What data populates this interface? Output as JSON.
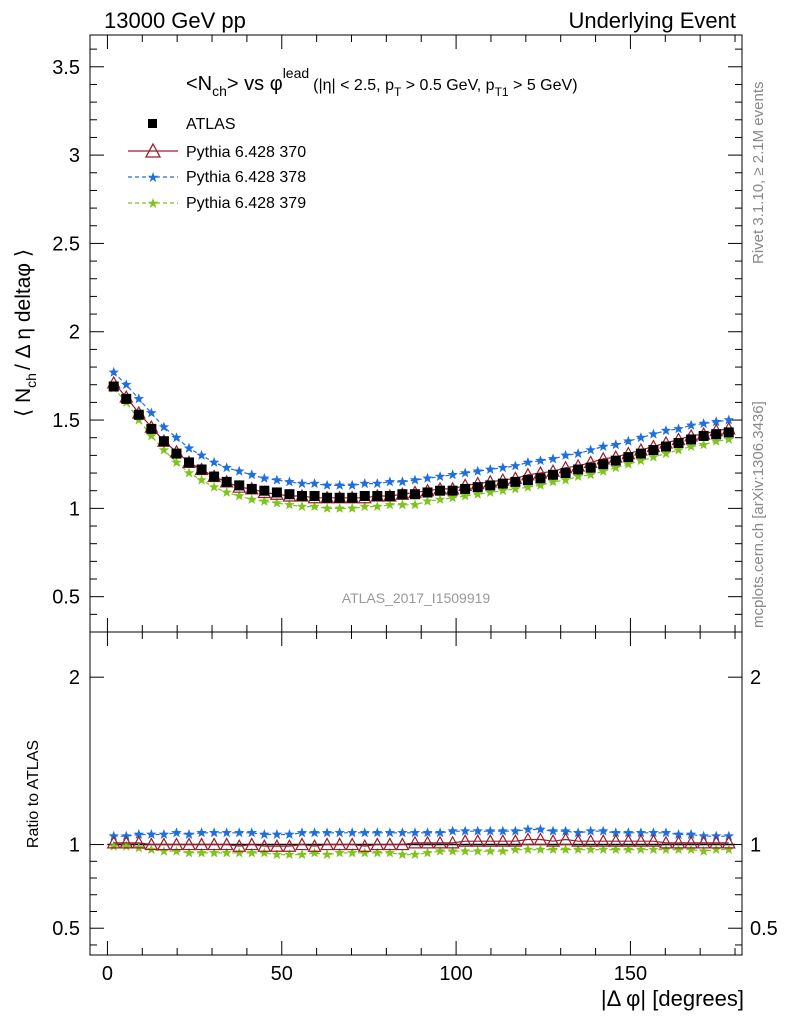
{
  "header": {
    "left": "13000 GeV pp",
    "right": "Underlying Event"
  },
  "side_labels": {
    "rivet": "Rivet 3.1.10, ≥ 2.1M events",
    "mcplots": "mcplots.cern.ch [arXiv:1306.3436]"
  },
  "watermark": "ATLAS_2017_I1509919",
  "chart_data": [
    {
      "type": "scatter",
      "title": "<N_ch> vs φ^lead (|η| < 2.5, p_T > 0.5 GeV, p_T1 > 5 GeV)",
      "title_parts": {
        "main": "<N",
        "main_sub": "ch",
        "main2": "> vs φ",
        "main_sup": "lead",
        "cond1": "(|η| < 2.5, p",
        "cond1_sub": "T",
        "cond2": " > 0.5 GeV, p",
        "cond2_sub": "T1",
        "cond3": " > 5 GeV)"
      },
      "ylabel": "⟨ N_ch / Δ η deltaφ ⟩",
      "ylabel_parts": {
        "a": "⟨ N",
        "sub": "ch",
        "b": "/ Δ η deltaφ ⟩"
      },
      "xlim": [
        -5,
        182
      ],
      "ylim": [
        0.3,
        3.68
      ],
      "yticks": [
        0.5,
        1,
        1.5,
        2,
        2.5,
        3,
        3.5
      ],
      "ytick_labels": [
        "0.5",
        "1",
        "1.5",
        "2",
        "2.5",
        "3",
        "3.5"
      ],
      "legend_position": "top-left",
      "x": [
        1.8,
        5.4,
        9.0,
        12.6,
        16.2,
        19.8,
        23.4,
        27.0,
        30.6,
        34.2,
        37.8,
        41.4,
        45.0,
        48.6,
        52.2,
        55.8,
        59.4,
        63.0,
        66.6,
        70.2,
        73.8,
        77.4,
        81.0,
        84.6,
        88.2,
        91.8,
        95.4,
        99.0,
        102.6,
        106.2,
        109.8,
        113.4,
        117.0,
        120.6,
        124.2,
        127.8,
        131.4,
        135.0,
        138.6,
        142.2,
        145.8,
        149.4,
        153.0,
        156.6,
        160.2,
        163.8,
        167.4,
        171.0,
        174.6,
        178.2
      ],
      "series": [
        {
          "name": "ATLAS",
          "color": "#000000",
          "marker": "square",
          "line": "none",
          "values": [
            1.69,
            1.62,
            1.53,
            1.45,
            1.38,
            1.31,
            1.26,
            1.22,
            1.18,
            1.15,
            1.13,
            1.11,
            1.1,
            1.09,
            1.08,
            1.07,
            1.07,
            1.06,
            1.06,
            1.06,
            1.07,
            1.07,
            1.07,
            1.08,
            1.08,
            1.09,
            1.1,
            1.1,
            1.11,
            1.12,
            1.13,
            1.14,
            1.15,
            1.16,
            1.17,
            1.19,
            1.2,
            1.22,
            1.23,
            1.25,
            1.27,
            1.29,
            1.31,
            1.33,
            1.35,
            1.37,
            1.39,
            1.41,
            1.42,
            1.43
          ]
        },
        {
          "name": "Pythia 6.428 370",
          "color": "#9b1c2e",
          "marker": "triangle",
          "line": "solid",
          "values": [
            1.71,
            1.63,
            1.54,
            1.46,
            1.38,
            1.32,
            1.26,
            1.22,
            1.18,
            1.15,
            1.12,
            1.11,
            1.09,
            1.08,
            1.07,
            1.07,
            1.06,
            1.06,
            1.06,
            1.06,
            1.06,
            1.07,
            1.07,
            1.08,
            1.09,
            1.1,
            1.11,
            1.11,
            1.13,
            1.14,
            1.15,
            1.16,
            1.17,
            1.19,
            1.2,
            1.21,
            1.23,
            1.24,
            1.26,
            1.28,
            1.29,
            1.31,
            1.33,
            1.35,
            1.37,
            1.39,
            1.41,
            1.42,
            1.44,
            1.45
          ]
        },
        {
          "name": "Pythia 6.428 378",
          "color": "#1f6fe0",
          "marker": "star",
          "line": "dashed",
          "values": [
            1.77,
            1.7,
            1.62,
            1.54,
            1.46,
            1.4,
            1.34,
            1.3,
            1.26,
            1.23,
            1.21,
            1.19,
            1.17,
            1.16,
            1.15,
            1.14,
            1.14,
            1.13,
            1.13,
            1.13,
            1.14,
            1.14,
            1.15,
            1.15,
            1.16,
            1.17,
            1.18,
            1.19,
            1.2,
            1.21,
            1.22,
            1.23,
            1.24,
            1.26,
            1.27,
            1.28,
            1.3,
            1.31,
            1.33,
            1.35,
            1.36,
            1.38,
            1.4,
            1.42,
            1.44,
            1.45,
            1.47,
            1.48,
            1.49,
            1.5
          ]
        },
        {
          "name": "Pythia 6.428 379",
          "color": "#7fc41c",
          "marker": "star",
          "line": "dashed",
          "values": [
            1.68,
            1.6,
            1.5,
            1.41,
            1.33,
            1.26,
            1.2,
            1.16,
            1.12,
            1.09,
            1.07,
            1.05,
            1.04,
            1.03,
            1.02,
            1.01,
            1.01,
            1.0,
            1.0,
            1.0,
            1.01,
            1.01,
            1.02,
            1.02,
            1.02,
            1.04,
            1.05,
            1.06,
            1.07,
            1.08,
            1.09,
            1.1,
            1.11,
            1.12,
            1.13,
            1.15,
            1.16,
            1.18,
            1.19,
            1.21,
            1.23,
            1.25,
            1.27,
            1.29,
            1.31,
            1.33,
            1.35,
            1.36,
            1.38,
            1.39
          ]
        }
      ]
    },
    {
      "type": "scatter",
      "xlabel": "|Δ φ| [degrees]",
      "ylabel": "Ratio to ATLAS",
      "xlim": [
        -5,
        182
      ],
      "ylim": [
        0.34,
        2.27
      ],
      "xticks": [
        0,
        50,
        100,
        150
      ],
      "xtick_labels": [
        "0",
        "50",
        "100",
        "150"
      ],
      "yticks": [
        0.5,
        1,
        2
      ],
      "ytick_labels": [
        "0.5",
        "1",
        "2"
      ],
      "reference_line": 1,
      "series": [
        {
          "name": "Pythia 6.428 370",
          "color": "#9b1c2e",
          "marker": "triangle",
          "line": "solid",
          "values": [
            1.01,
            1.01,
            1.01,
            1.0,
            1.0,
            1.0,
            1.0,
            1.0,
            1.0,
            1.0,
            0.99,
            1.0,
            0.99,
            0.99,
            0.99,
            1.0,
            0.99,
            1.0,
            1.0,
            1.0,
            0.99,
            1.0,
            1.0,
            1.0,
            1.01,
            1.01,
            1.01,
            1.01,
            1.02,
            1.02,
            1.02,
            1.02,
            1.02,
            1.03,
            1.03,
            1.02,
            1.03,
            1.02,
            1.02,
            1.02,
            1.02,
            1.02,
            1.02,
            1.02,
            1.01,
            1.01,
            1.01,
            1.01,
            1.01,
            1.01
          ]
        },
        {
          "name": "Pythia 6.428 378",
          "color": "#1f6fe0",
          "marker": "star",
          "line": "dashed",
          "values": [
            1.05,
            1.05,
            1.06,
            1.06,
            1.06,
            1.07,
            1.06,
            1.07,
            1.07,
            1.07,
            1.07,
            1.07,
            1.06,
            1.06,
            1.06,
            1.07,
            1.07,
            1.07,
            1.07,
            1.07,
            1.07,
            1.07,
            1.07,
            1.07,
            1.07,
            1.07,
            1.07,
            1.08,
            1.08,
            1.08,
            1.08,
            1.08,
            1.08,
            1.09,
            1.09,
            1.08,
            1.08,
            1.07,
            1.08,
            1.08,
            1.07,
            1.07,
            1.07,
            1.07,
            1.07,
            1.06,
            1.06,
            1.05,
            1.05,
            1.05
          ]
        },
        {
          "name": "Pythia 6.428 379",
          "color": "#7fc41c",
          "marker": "star",
          "line": "dashed",
          "values": [
            0.99,
            0.99,
            0.98,
            0.97,
            0.96,
            0.96,
            0.95,
            0.95,
            0.95,
            0.95,
            0.95,
            0.95,
            0.95,
            0.94,
            0.94,
            0.94,
            0.95,
            0.94,
            0.95,
            0.95,
            0.95,
            0.95,
            0.95,
            0.94,
            0.94,
            0.95,
            0.96,
            0.96,
            0.96,
            0.96,
            0.96,
            0.96,
            0.97,
            0.97,
            0.97,
            0.97,
            0.97,
            0.97,
            0.97,
            0.97,
            0.97,
            0.97,
            0.97,
            0.97,
            0.97,
            0.97,
            0.97,
            0.96,
            0.97,
            0.97
          ]
        }
      ]
    }
  ]
}
